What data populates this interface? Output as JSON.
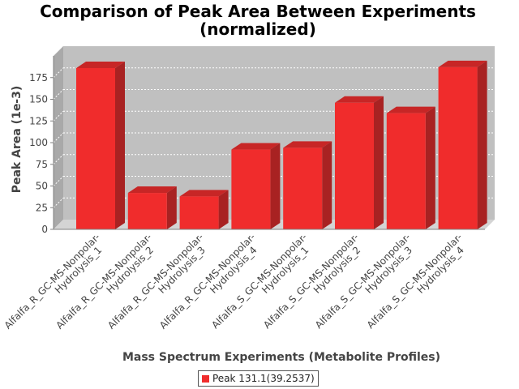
{
  "colors": {
    "plot_back": "#c0c0c0",
    "plot_side": "#a9a9a9",
    "plot_floor": "#d4d4d4",
    "bar_front": "#f02c2c",
    "bar_side": "#a82222",
    "bar_top": "#c72626",
    "grid": "#ffffff",
    "axis": "#808080"
  },
  "chart_data": {
    "type": "bar",
    "title": "Comparison of Peak Area Between Experiments",
    "subtitle": "(normalized)",
    "xlabel": "Mass Spectrum Experiments (Metabolite Profiles)",
    "ylabel": "Peak Area (1e-3)",
    "ylim": [
      0,
      200
    ],
    "yticks": [
      0,
      25,
      50,
      75,
      100,
      125,
      150,
      175
    ],
    "grid": true,
    "legend_position": "bottom",
    "categories": [
      [
        "Alfalfa_R_GC-MS-Nonpolar-",
        "Hydrolysis_1"
      ],
      [
        "Alfalfa_R_GC-MS-Nonpolar-",
        "Hydrolysis_2"
      ],
      [
        "Alfalfa_R_GC-MS-Nonpolar-",
        "Hydrolysis_3"
      ],
      [
        "Alfalfa_R_GC-MS-Nonpolar-",
        "Hydrolysis_4"
      ],
      [
        "Alfalfa_S_GC-MS-Nonpolar-",
        "Hydrolysis_1"
      ],
      [
        "Alfalfa_S_GC-MS-Nonpolar-",
        "Hydrolysis_2"
      ],
      [
        "Alfalfa_S_GC-MS-Nonpolar-",
        "Hydrolysis_3"
      ],
      [
        "Alfalfa_S_GC-MS-Nonpolar-",
        "Hydrolysis_4"
      ]
    ],
    "series": [
      {
        "name": "Peak 131.1(39.2537)",
        "values": [
          186,
          42,
          38,
          92,
          94,
          146,
          134,
          187
        ]
      }
    ]
  }
}
